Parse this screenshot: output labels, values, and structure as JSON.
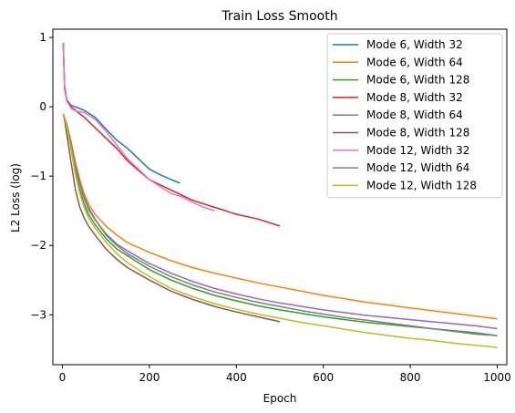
{
  "chart_data": {
    "type": "line",
    "title": "Train Loss Smooth",
    "xlabel": "Epoch",
    "ylabel": "L2 Loss (log)",
    "xlim": [
      -22,
      1022
    ],
    "ylim": [
      -3.72,
      1.12
    ],
    "xticks": [
      0,
      200,
      400,
      600,
      800,
      1000
    ],
    "yticks": [
      1,
      0,
      -1,
      -2,
      -3
    ],
    "legend_position": "top-right",
    "grid": false,
    "series": [
      {
        "name": "Mode 6, Width 32",
        "color": "#1f77b4",
        "x": [
          2,
          5,
          10,
          20,
          30,
          50,
          75,
          100,
          125,
          150,
          175,
          200,
          225,
          250,
          270
        ],
        "y": [
          0.9,
          0.25,
          0.1,
          0.02,
          0.0,
          -0.05,
          -0.15,
          -0.32,
          -0.48,
          -0.6,
          -0.75,
          -0.9,
          -0.98,
          -1.05,
          -1.1
        ]
      },
      {
        "name": "Mode 6, Width 64",
        "color": "#ff7f0e",
        "x": [
          2,
          5,
          10,
          20,
          30,
          40,
          50,
          60,
          75,
          100,
          125,
          150,
          200,
          250,
          300,
          350,
          400,
          450,
          500,
          550,
          600,
          650,
          700,
          750,
          800,
          850,
          900,
          950,
          1000
        ],
        "y": [
          -0.1,
          -0.15,
          -0.25,
          -0.5,
          -0.8,
          -1.05,
          -1.25,
          -1.4,
          -1.55,
          -1.72,
          -1.85,
          -1.96,
          -2.1,
          -2.22,
          -2.32,
          -2.4,
          -2.47,
          -2.54,
          -2.6,
          -2.66,
          -2.72,
          -2.77,
          -2.82,
          -2.86,
          -2.9,
          -2.94,
          -2.98,
          -3.02,
          -3.06
        ]
      },
      {
        "name": "Mode 6, Width 128",
        "color": "#2ca02c",
        "x": [
          2,
          5,
          10,
          20,
          30,
          40,
          50,
          60,
          75,
          100,
          125,
          150,
          200,
          250,
          300,
          350,
          400,
          450,
          500,
          550,
          600,
          650,
          700,
          750,
          800,
          850,
          900,
          950,
          1000
        ],
        "y": [
          -0.1,
          -0.18,
          -0.3,
          -0.6,
          -0.95,
          -1.2,
          -1.4,
          -1.55,
          -1.7,
          -1.9,
          -2.05,
          -2.15,
          -2.35,
          -2.5,
          -2.62,
          -2.72,
          -2.8,
          -2.87,
          -2.93,
          -2.98,
          -3.03,
          -3.07,
          -3.11,
          -3.14,
          -3.17,
          -3.2,
          -3.23,
          -3.26,
          -3.3
        ]
      },
      {
        "name": "Mode 8, Width 32",
        "color": "#d62728",
        "x": [
          2,
          5,
          10,
          20,
          30,
          50,
          75,
          100,
          125,
          150,
          175,
          200,
          250,
          300,
          350,
          400,
          450,
          500
        ],
        "y": [
          0.92,
          0.3,
          0.1,
          0.0,
          -0.05,
          -0.15,
          -0.3,
          -0.45,
          -0.6,
          -0.78,
          -0.92,
          -1.05,
          -1.2,
          -1.35,
          -1.45,
          -1.55,
          -1.62,
          -1.72
        ]
      },
      {
        "name": "Mode 8, Width 64",
        "color": "#9467bd",
        "x": [
          2,
          5,
          10,
          20,
          30,
          40,
          50,
          60,
          75,
          100,
          125,
          150,
          200,
          250,
          300,
          350,
          400,
          450,
          500,
          550,
          600,
          650,
          700,
          750,
          800,
          850,
          900,
          950,
          1000
        ],
        "y": [
          -0.1,
          -0.17,
          -0.28,
          -0.55,
          -0.88,
          -1.12,
          -1.32,
          -1.48,
          -1.63,
          -1.83,
          -1.98,
          -2.08,
          -2.26,
          -2.4,
          -2.52,
          -2.62,
          -2.7,
          -2.77,
          -2.83,
          -2.88,
          -2.93,
          -2.97,
          -3.01,
          -3.04,
          -3.07,
          -3.1,
          -3.13,
          -3.16,
          -3.2
        ]
      },
      {
        "name": "Mode 8, Width 128",
        "color": "#8c564b",
        "x": [
          2,
          5,
          10,
          20,
          30,
          40,
          50,
          60,
          75,
          100,
          125,
          150,
          200,
          250,
          300,
          350,
          400,
          450,
          500
        ],
        "y": [
          -0.1,
          -0.2,
          -0.4,
          -0.8,
          -1.2,
          -1.45,
          -1.6,
          -1.72,
          -1.85,
          -2.05,
          -2.2,
          -2.32,
          -2.5,
          -2.66,
          -2.78,
          -2.88,
          -2.96,
          -3.03,
          -3.1
        ]
      },
      {
        "name": "Mode 12, Width 32",
        "color": "#e377c2",
        "x": [
          2,
          5,
          10,
          20,
          30,
          50,
          75,
          100,
          125,
          150,
          175,
          200,
          225,
          250,
          275,
          300,
          325,
          350
        ],
        "y": [
          0.9,
          0.25,
          0.08,
          -0.02,
          -0.06,
          -0.08,
          -0.18,
          -0.35,
          -0.55,
          -0.75,
          -0.9,
          -1.05,
          -1.15,
          -1.25,
          -1.3,
          -1.38,
          -1.45,
          -1.5
        ]
      },
      {
        "name": "Mode 12, Width 64",
        "color": "#7f7f7f",
        "x": [
          2,
          5,
          10,
          20,
          30,
          40,
          50,
          60,
          75,
          100,
          125,
          150,
          200,
          250,
          300,
          350,
          400,
          450,
          500,
          550,
          600,
          650,
          700,
          750,
          800,
          850,
          900,
          950,
          1000
        ],
        "y": [
          -0.1,
          -0.16,
          -0.26,
          -0.55,
          -0.85,
          -1.1,
          -1.3,
          -1.45,
          -1.62,
          -1.85,
          -2.0,
          -2.12,
          -2.3,
          -2.45,
          -2.57,
          -2.67,
          -2.75,
          -2.82,
          -2.88,
          -2.94,
          -2.99,
          -3.04,
          -3.08,
          -3.12,
          -3.16,
          -3.2,
          -3.24,
          -3.28,
          -3.3
        ]
      },
      {
        "name": "Mode 12, Width 128",
        "color": "#bcbd22",
        "x": [
          2,
          5,
          10,
          20,
          30,
          40,
          50,
          60,
          75,
          100,
          125,
          150,
          200,
          250,
          300,
          350,
          400,
          450,
          500,
          550,
          600,
          650,
          700,
          750,
          800,
          850,
          900,
          950,
          1000
        ],
        "y": [
          -0.1,
          -0.17,
          -0.3,
          -0.62,
          -0.98,
          -1.25,
          -1.45,
          -1.6,
          -1.75,
          -1.95,
          -2.12,
          -2.25,
          -2.45,
          -2.62,
          -2.74,
          -2.84,
          -2.92,
          -2.99,
          -3.05,
          -3.11,
          -3.16,
          -3.21,
          -3.26,
          -3.3,
          -3.34,
          -3.37,
          -3.41,
          -3.44,
          -3.47
        ]
      }
    ]
  }
}
